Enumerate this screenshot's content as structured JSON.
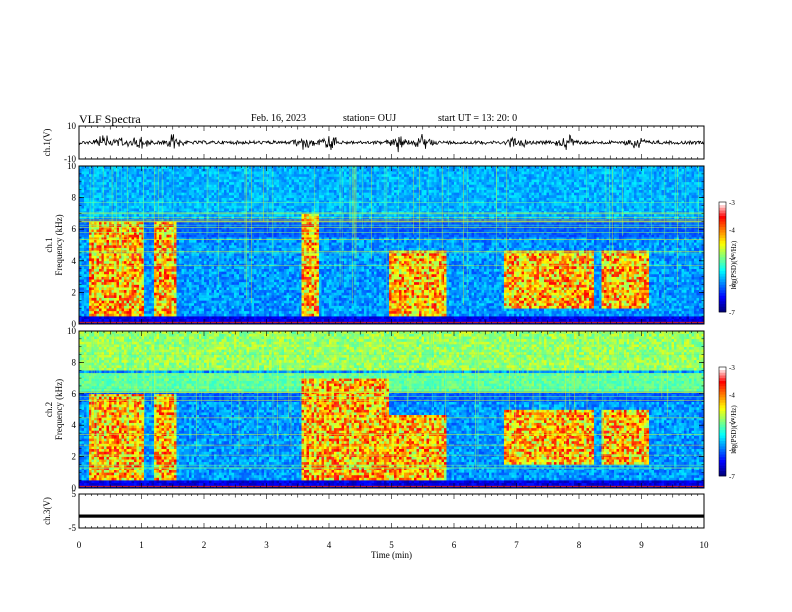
{
  "header": {
    "title": "VLF Spectra",
    "date": "Feb. 16, 2023",
    "station": "station= OUJ",
    "start": "start  UT =   13: 20: 0"
  },
  "chart_data": [
    {
      "type": "line",
      "panel": "waveform-ch1",
      "ylabel": "ch.1(V)",
      "ylim": [
        -10,
        10
      ],
      "yticks": [
        "10",
        "-10"
      ],
      "xlim": [
        0,
        10
      ],
      "bursts_min": [
        0.4,
        0.65,
        1.0,
        1.5,
        3.6,
        4.0,
        5.1,
        5.5,
        7.0,
        7.8,
        8.9
      ]
    },
    {
      "type": "heatmap",
      "panel": "spectrogram-ch1",
      "ylabel": "ch.1\nFrequency (kHz)",
      "ylim": [
        0,
        10
      ],
      "yticks": [
        "0",
        "2",
        "4",
        "6",
        "8",
        "10"
      ],
      "xlim": [
        0,
        10
      ],
      "colorbar": {
        "label": "log(PSD)(V²/Hz)",
        "range": [
          -7,
          -3
        ],
        "ticks": [
          "-3",
          "-4",
          "-5",
          "-6",
          "-7"
        ]
      },
      "intense_blocks": [
        {
          "t": [
            0.15,
            1.0
          ],
          "f": [
            0.5,
            6.5
          ]
        },
        {
          "t": [
            1.2,
            1.55
          ],
          "f": [
            0.5,
            6.5
          ]
        },
        {
          "t": [
            3.55,
            3.8
          ],
          "f": [
            0.5,
            7.0
          ]
        },
        {
          "t": [
            4.95,
            5.85
          ],
          "f": [
            0.5,
            4.7
          ]
        },
        {
          "t": [
            6.8,
            8.2
          ],
          "f": [
            1.0,
            4.7
          ]
        },
        {
          "t": [
            8.35,
            9.1
          ],
          "f": [
            1.0,
            4.7
          ]
        }
      ]
    },
    {
      "type": "heatmap",
      "panel": "spectrogram-ch2",
      "ylabel": "ch.2\nFrequency (kHz)",
      "ylim": [
        0,
        10
      ],
      "yticks": [
        "0",
        "2",
        "4",
        "6",
        "8",
        "10"
      ],
      "xlim": [
        0,
        10
      ],
      "colorbar": {
        "label": "log(PSD)(V²/Hz)",
        "range": [
          -7,
          -3
        ],
        "ticks": [
          "-3",
          "-4",
          "-5",
          "-6",
          "-7"
        ]
      },
      "intense_blocks": [
        {
          "t": [
            0.15,
            1.0
          ],
          "f": [
            0.5,
            6.0
          ]
        },
        {
          "t": [
            1.2,
            1.55
          ],
          "f": [
            0.5,
            6.0
          ]
        },
        {
          "t": [
            3.55,
            4.95
          ],
          "f": [
            0.5,
            7.0
          ]
        },
        {
          "t": [
            4.95,
            5.85
          ],
          "f": [
            0.5,
            4.7
          ]
        },
        {
          "t": [
            6.8,
            8.2
          ],
          "f": [
            1.5,
            5.0
          ]
        },
        {
          "t": [
            8.35,
            9.1
          ],
          "f": [
            1.5,
            5.0
          ]
        }
      ]
    },
    {
      "type": "line",
      "panel": "waveform-ch3",
      "ylabel": "ch.3(V)",
      "ylim": [
        -5,
        5
      ],
      "yticks": [
        "5",
        "-5"
      ],
      "xlim": [
        0,
        10
      ],
      "xlabel": "Time (min)",
      "xticks": [
        "0",
        "1",
        "2",
        "3",
        "4",
        "5",
        "6",
        "7",
        "8",
        "9",
        "10"
      ],
      "constant_value": -1.5
    }
  ]
}
